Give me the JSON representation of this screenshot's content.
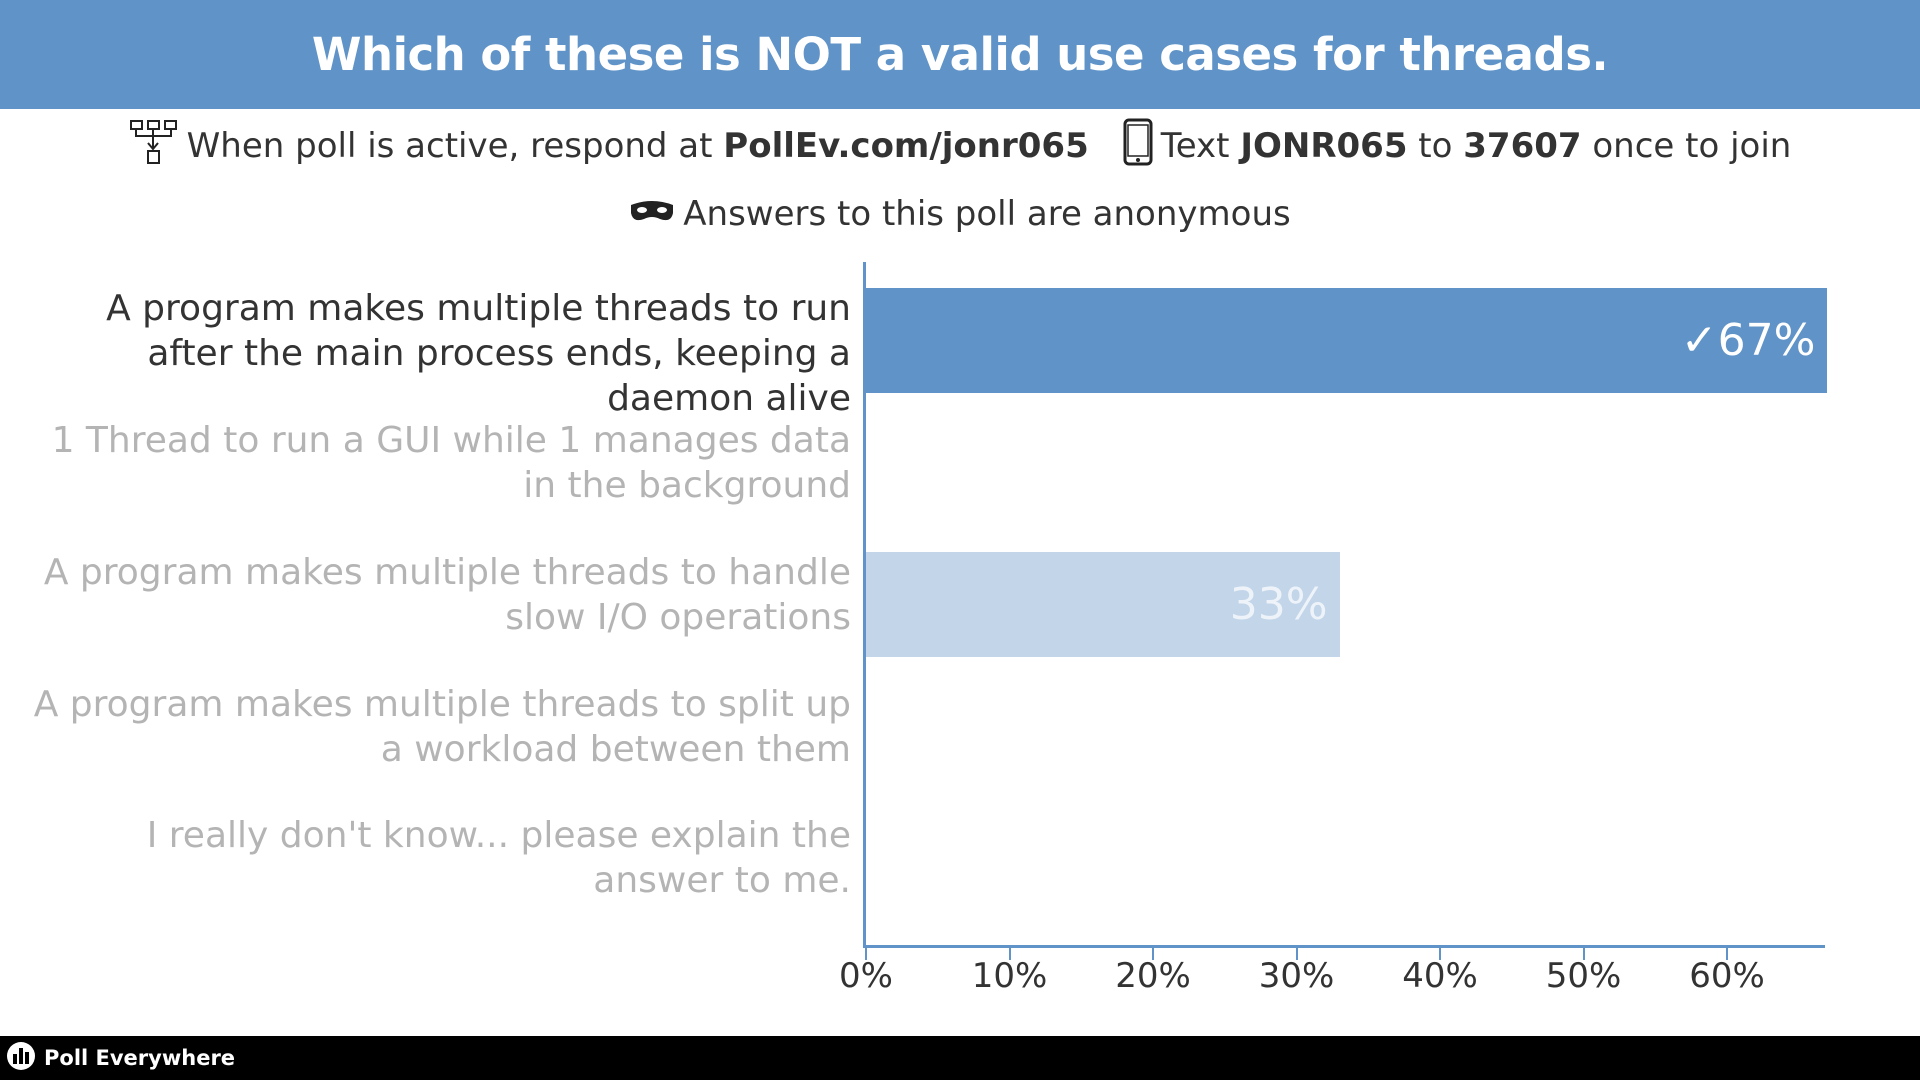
{
  "header": {
    "title": "Which of these is NOT a valid use cases for threads."
  },
  "instructions": {
    "web_prefix": "When poll is active, respond at",
    "web_url": "PollEv.com/jonr065",
    "text_prefix": "Text",
    "text_code": "JONR065",
    "text_to": "to",
    "text_number": "37607",
    "text_suffix": "once to join",
    "anonymous": "Answers to this poll are anonymous",
    "icons": [
      "network-icon",
      "phone-icon",
      "mask-icon"
    ]
  },
  "chart_data": {
    "type": "bar",
    "orientation": "horizontal",
    "categories": [
      "A program makes multiple threads to run after the main process ends, keeping a daemon alive",
      "1 Thread to run a GUI while 1 manages data in the background",
      "A program makes multiple threads to handle slow I/O operations",
      "A program makes multiple threads to split up a workload between them",
      "I really don't know... please explain the answer to me."
    ],
    "values": [
      67,
      0,
      33,
      0,
      0
    ],
    "value_labels": [
      "✓67%",
      "",
      "33%",
      "",
      ""
    ],
    "correct_index": 0,
    "xlim": [
      0,
      67
    ],
    "xticks": [
      "0%",
      "10%",
      "20%",
      "30%",
      "40%",
      "50%",
      "60%"
    ],
    "colors": {
      "correct": "#6093c7",
      "other": "#c2d5e9",
      "axis": "#6093c7"
    }
  },
  "footer": {
    "brand": "Poll Everywhere"
  }
}
